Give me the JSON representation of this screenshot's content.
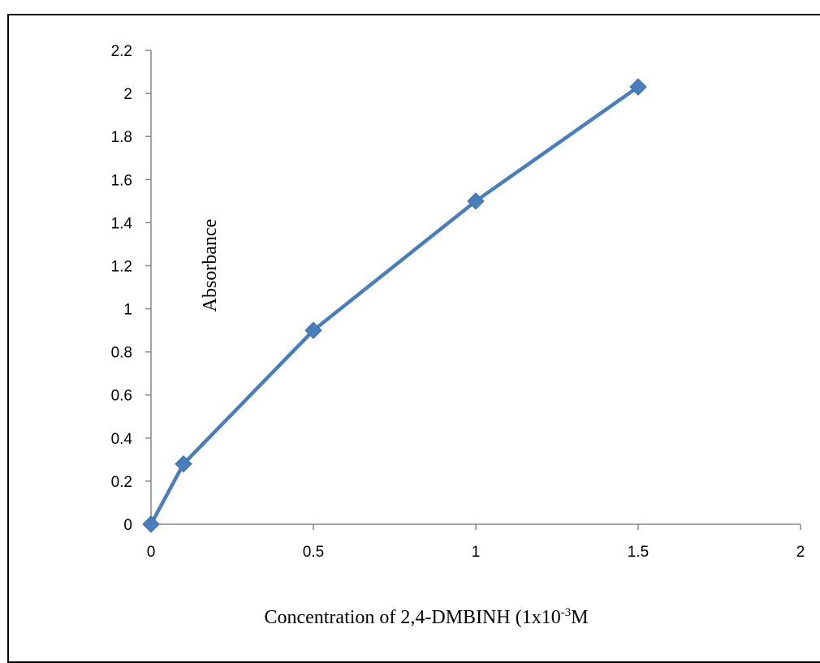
{
  "chart_data": {
    "type": "line",
    "title": "",
    "xlabel": "Concentration of 2,4-DMBINH (1x10",
    "xlabel_superscript": "-3",
    "xlabel_suffix": "M",
    "ylabel": "Absorbance",
    "xlim": [
      0,
      2
    ],
    "ylim": [
      0,
      2.2
    ],
    "x_ticks": [
      "0",
      "0.5",
      "1",
      "1.5",
      "2"
    ],
    "y_ticks": [
      "0",
      "0.2",
      "0.4",
      "0.6",
      "0.8",
      "1",
      "1.2",
      "1.4",
      "1.6",
      "1.8",
      "2",
      "2.2"
    ],
    "grid": false,
    "legend": "none",
    "series": [
      {
        "x": [
          0,
          0.1,
          0.5,
          1.0,
          1.5
        ],
        "y": [
          0,
          0.28,
          0.9,
          1.5,
          2.03
        ],
        "color": "#4a7ebb",
        "marker": "diamond"
      }
    ]
  }
}
